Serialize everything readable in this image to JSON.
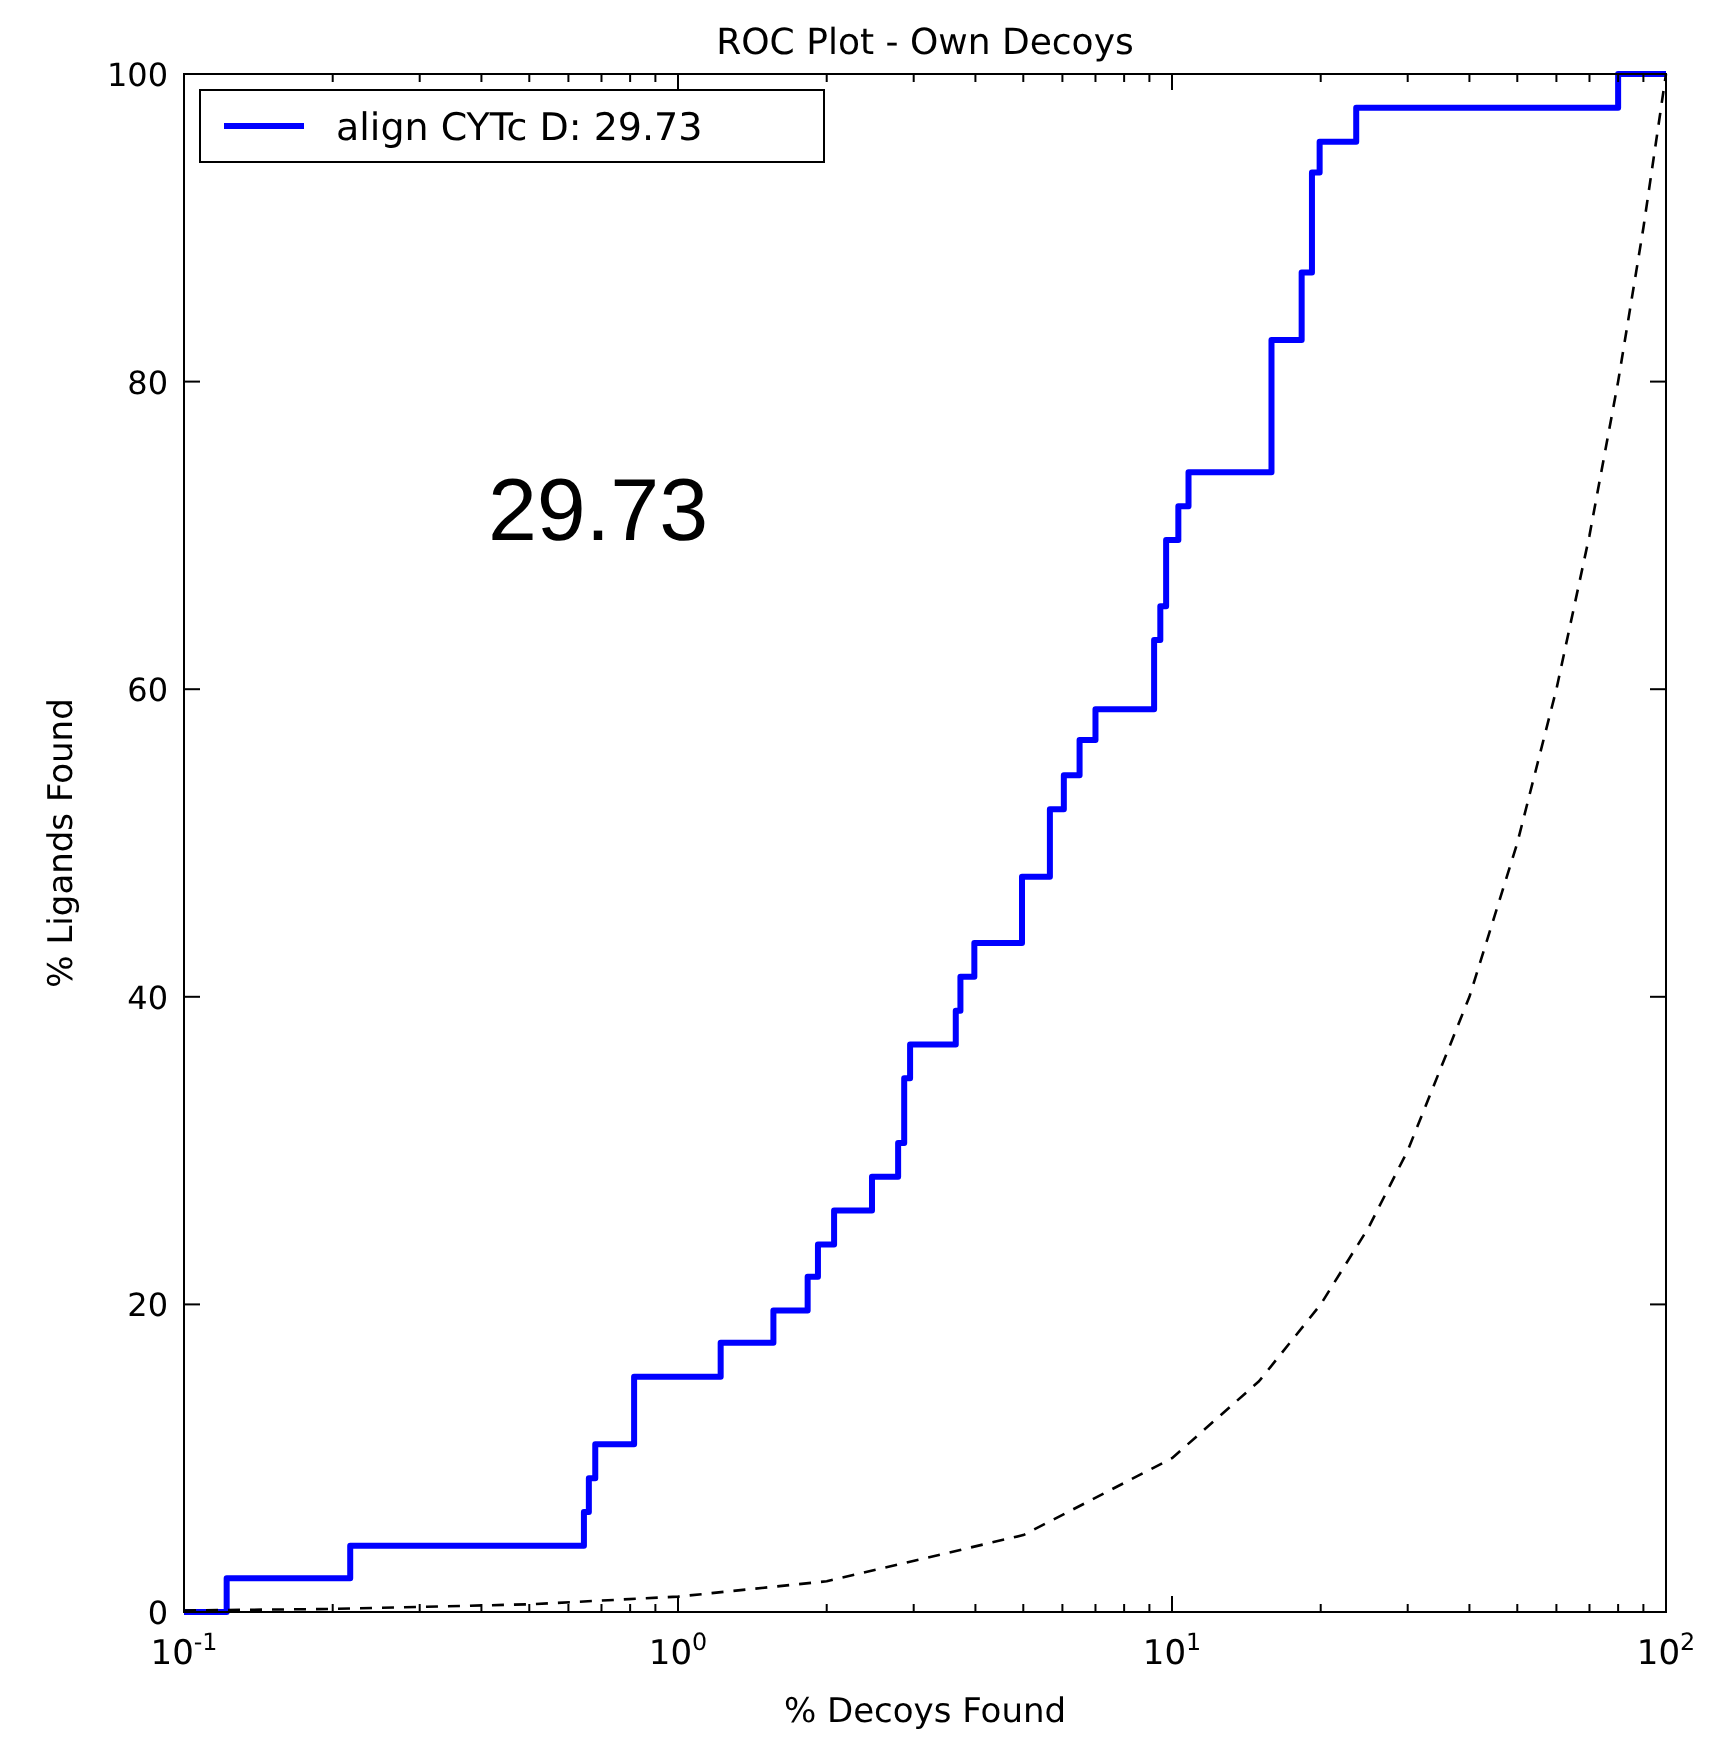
{
  "chart_data": {
    "type": "step",
    "title": "ROC Plot - Own Decoys",
    "xlabel": "% Decoys Found",
    "ylabel": "% Ligands Found",
    "log": "x",
    "xlim": [
      0.1,
      100
    ],
    "ylim": [
      0,
      100
    ],
    "xticks": [
      {
        "value": 0.1,
        "label": "10$^{-1}$"
      },
      {
        "value": 0.2,
        "label": null
      },
      {
        "value": 0.3,
        "label": null
      },
      {
        "value": 0.4,
        "label": null
      },
      {
        "value": 0.5,
        "label": null
      },
      {
        "value": 0.6,
        "label": null
      },
      {
        "value": 0.7,
        "label": null
      },
      {
        "value": 0.8,
        "label": null
      },
      {
        "value": 0.9,
        "label": null
      },
      {
        "value": 1,
        "label": "10$^{0}$"
      },
      {
        "value": 2,
        "label": null
      },
      {
        "value": 3,
        "label": null
      },
      {
        "value": 4,
        "label": null
      },
      {
        "value": 5,
        "label": null
      },
      {
        "value": 6,
        "label": null
      },
      {
        "value": 7,
        "label": null
      },
      {
        "value": 8,
        "label": null
      },
      {
        "value": 9,
        "label": null
      },
      {
        "value": 10,
        "label": "10$^{1}$"
      },
      {
        "value": 20,
        "label": null
      },
      {
        "value": 30,
        "label": null
      },
      {
        "value": 40,
        "label": null
      },
      {
        "value": 50,
        "label": null
      },
      {
        "value": 60,
        "label": null
      },
      {
        "value": 70,
        "label": null
      },
      {
        "value": 80,
        "label": null
      },
      {
        "value": 90,
        "label": null
      },
      {
        "value": 100,
        "label": "10$^{2}$"
      }
    ],
    "yticks": [
      0,
      20,
      40,
      60,
      80,
      100
    ],
    "grid": false,
    "legend": "top left",
    "marker": "none",
    "annotations": [
      "29.73"
    ],
    "series": [
      {
        "name": "align CYTc D: 29.73",
        "color": "#0000ff",
        "line_style": "solid",
        "x": [
          0.1,
          0.122,
          0.217,
          0.645,
          0.66,
          0.68,
          0.815,
          1.22,
          1.56,
          1.83,
          1.92,
          2.07,
          2.47,
          2.79,
          2.87,
          2.95,
          3.65,
          3.73,
          3.98,
          4.97,
          5.66,
          6.04,
          6.5,
          7.0,
          9.2,
          9.47,
          9.73,
          10.3,
          10.8,
          15.9,
          18.3,
          19.2,
          19.9,
          23.6,
          80,
          100
        ],
        "values": [
          0,
          2.2,
          4.3,
          6.5,
          8.7,
          10.9,
          15.3,
          17.5,
          19.6,
          21.8,
          23.9,
          26.1,
          28.3,
          30.5,
          34.7,
          36.9,
          39.1,
          41.3,
          43.5,
          47.8,
          52.2,
          54.4,
          56.7,
          58.7,
          63.2,
          65.4,
          69.7,
          71.9,
          74.1,
          82.7,
          87.1,
          93.6,
          95.6,
          97.8,
          100,
          100
        ]
      },
      {
        "color": "#000000",
        "type": "line",
        "line_style": "dashed",
        "x": [
          0.1,
          0.2,
          0.5,
          1,
          2,
          5,
          10,
          15,
          20,
          25,
          30,
          40,
          50,
          60,
          70,
          80,
          90,
          100
        ],
        "values": [
          0.1,
          0.2,
          0.5,
          1,
          2,
          5,
          10,
          15,
          20,
          25,
          30,
          40,
          50,
          60,
          70,
          80,
          90,
          100
        ]
      }
    ]
  }
}
